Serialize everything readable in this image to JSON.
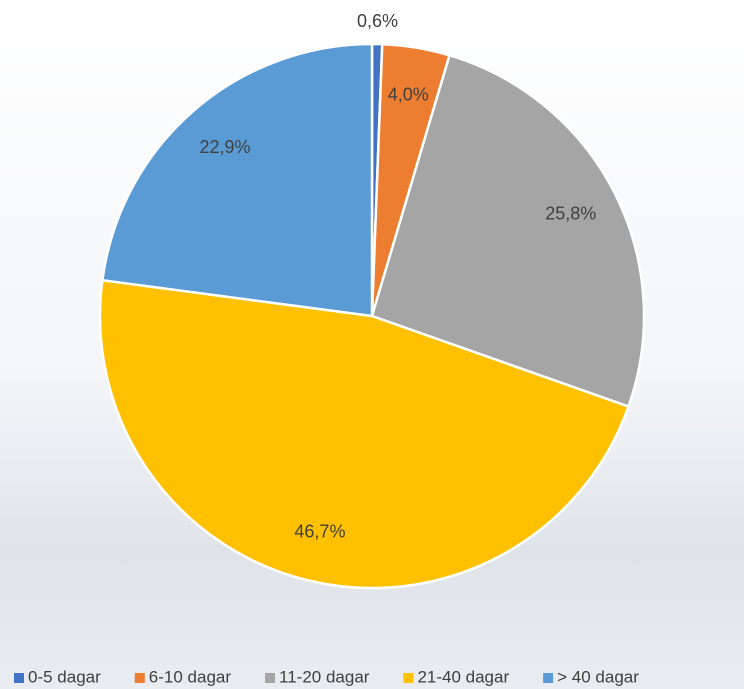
{
  "chart_data": {
    "type": "pie",
    "categories": [
      "0-5 dagar",
      "6-10 dagar",
      "11-20 dagar",
      "21-40 dagar",
      "> 40 dagar"
    ],
    "values": [
      0.6,
      4.0,
      25.8,
      46.7,
      22.9
    ],
    "value_labels": [
      "0,6%",
      "4,0%",
      "25,8%",
      "46,7%",
      "22,9%"
    ],
    "colors": [
      "#4472c4",
      "#ed7d31",
      "#a5a5a5",
      "#ffc000",
      "#5b9bd5"
    ],
    "legend": "bottom"
  }
}
